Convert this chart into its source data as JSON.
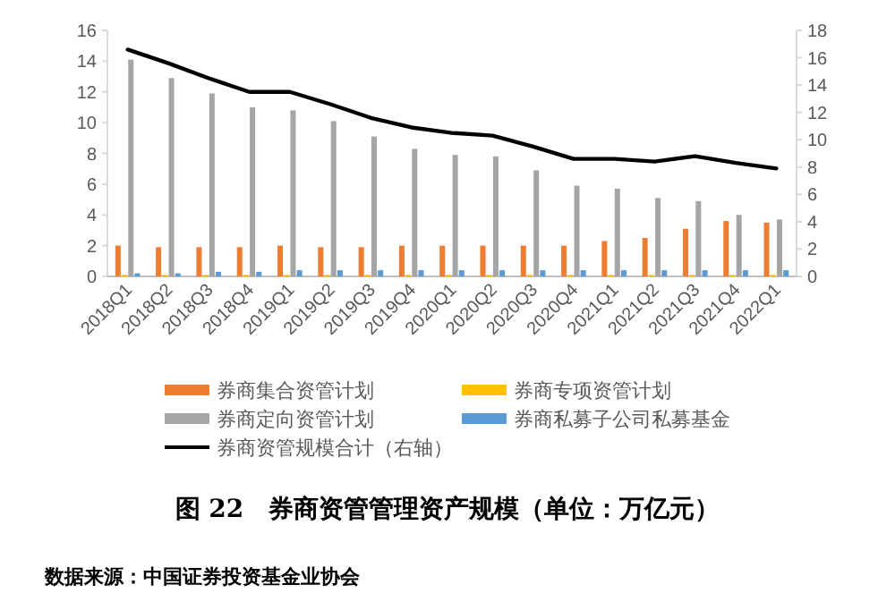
{
  "chart_data": {
    "type": "bar",
    "title": "图 22　券商资管管理资产规模（单位：万亿元）",
    "annotations": [
      "数据来源：中国证券投资基金业协会"
    ],
    "categories": [
      "2018Q1",
      "2018Q2",
      "2018Q3",
      "2018Q4",
      "2019Q1",
      "2019Q2",
      "2019Q3",
      "2019Q4",
      "2020Q1",
      "2020Q2",
      "2020Q3",
      "2020Q4",
      "2021Q1",
      "2021Q2",
      "2021Q3",
      "2021Q4",
      "2022Q1"
    ],
    "series": [
      {
        "name": "券商集合资管计划",
        "color": "#ed7d31",
        "values": [
          2.0,
          1.9,
          1.9,
          1.9,
          2.0,
          1.9,
          1.9,
          2.0,
          2.0,
          2.0,
          2.0,
          2.0,
          2.3,
          2.5,
          3.1,
          3.6,
          3.5
        ]
      },
      {
        "name": "券商专项资管计划",
        "color": "#ffc000",
        "values": [
          0.1,
          0.1,
          0.1,
          0.1,
          0.1,
          0.1,
          0.1,
          0.1,
          0.1,
          0.1,
          0.1,
          0.1,
          0.1,
          0.1,
          0.1,
          0.1,
          0.1
        ]
      },
      {
        "name": "券商定向资管计划",
        "color": "#a5a5a5",
        "values": [
          14.1,
          12.9,
          11.9,
          11.0,
          10.8,
          10.1,
          9.1,
          8.3,
          7.9,
          7.8,
          6.9,
          5.9,
          5.7,
          5.1,
          4.9,
          4.0,
          3.7
        ]
      },
      {
        "name": "券商私募子公司私募基金",
        "color": "#5b9bd5",
        "values": [
          0.2,
          0.2,
          0.3,
          0.3,
          0.4,
          0.4,
          0.4,
          0.4,
          0.4,
          0.4,
          0.4,
          0.4,
          0.4,
          0.4,
          0.4,
          0.4,
          0.4
        ]
      },
      {
        "name": "券商资管规模合计（右轴）",
        "color": "#000000",
        "type": "line",
        "axis": "y2",
        "values": [
          16.6,
          15.6,
          14.5,
          13.5,
          13.5,
          12.6,
          11.6,
          10.9,
          10.5,
          10.3,
          9.5,
          8.6,
          8.6,
          8.4,
          8.8,
          8.3,
          7.9
        ]
      }
    ],
    "ylim": [
      0,
      16
    ],
    "yticks": [
      0,
      2,
      4,
      6,
      8,
      10,
      12,
      14,
      16
    ],
    "y2lim": [
      0,
      18
    ],
    "y2ticks": [
      0,
      2,
      4,
      6,
      8,
      10,
      12,
      14,
      16,
      18
    ],
    "grid": false,
    "legend": "bottom",
    "marker": "none"
  }
}
